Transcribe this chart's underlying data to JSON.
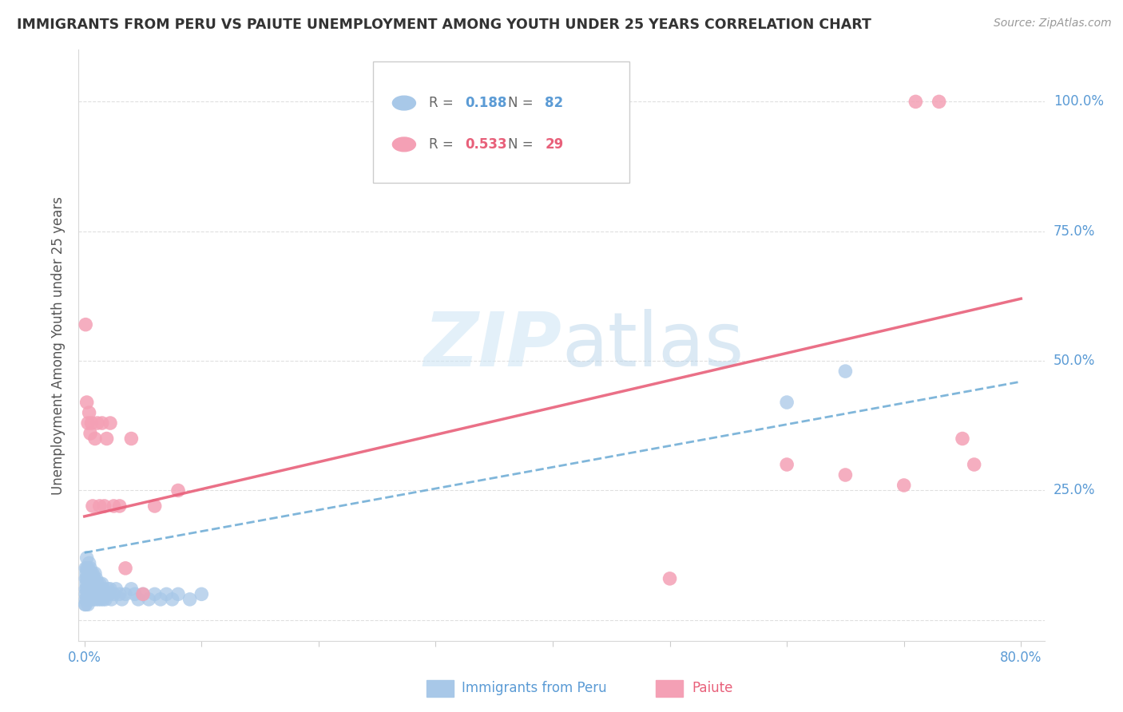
{
  "title": "IMMIGRANTS FROM PERU VS PAIUTE UNEMPLOYMENT AMONG YOUTH UNDER 25 YEARS CORRELATION CHART",
  "source": "Source: ZipAtlas.com",
  "ylabel": "Unemployment Among Youth under 25 years",
  "xlim": [
    -0.005,
    0.82
  ],
  "ylim": [
    -0.04,
    1.1
  ],
  "peru_R": 0.188,
  "peru_N": 82,
  "paiute_R": 0.533,
  "paiute_N": 29,
  "blue_color": "#a8c8e8",
  "pink_color": "#f4a0b5",
  "blue_line_color": "#6aaad4",
  "pink_line_color": "#e8607a",
  "watermark_color": "#daeef8",
  "grid_color": "#d8d8d8",
  "title_color": "#333333",
  "source_color": "#999999",
  "ylabel_color": "#555555",
  "tick_label_color": "#5b9bd5",
  "blue_legend_r_color": "#5b9bd5",
  "pink_legend_r_color": "#e8607a",
  "peru_x": [
    0.0005,
    0.001,
    0.001,
    0.001,
    0.001,
    0.001,
    0.001,
    0.0015,
    0.0015,
    0.002,
    0.002,
    0.002,
    0.002,
    0.002,
    0.0025,
    0.003,
    0.003,
    0.003,
    0.003,
    0.003,
    0.0035,
    0.004,
    0.004,
    0.004,
    0.004,
    0.005,
    0.005,
    0.005,
    0.005,
    0.006,
    0.006,
    0.006,
    0.007,
    0.007,
    0.007,
    0.008,
    0.008,
    0.008,
    0.009,
    0.009,
    0.009,
    0.01,
    0.01,
    0.01,
    0.011,
    0.011,
    0.012,
    0.012,
    0.013,
    0.013,
    0.014,
    0.014,
    0.015,
    0.015,
    0.016,
    0.016,
    0.017,
    0.018,
    0.019,
    0.02,
    0.021,
    0.022,
    0.023,
    0.025,
    0.027,
    0.03,
    0.032,
    0.035,
    0.04,
    0.043,
    0.046,
    0.05,
    0.055,
    0.06,
    0.065,
    0.07,
    0.075,
    0.08,
    0.09,
    0.1,
    0.6,
    0.65
  ],
  "peru_y": [
    0.03,
    0.04,
    0.06,
    0.08,
    0.1,
    0.03,
    0.05,
    0.07,
    0.09,
    0.04,
    0.06,
    0.08,
    0.1,
    0.12,
    0.05,
    0.04,
    0.06,
    0.08,
    0.1,
    0.03,
    0.07,
    0.05,
    0.07,
    0.09,
    0.11,
    0.04,
    0.06,
    0.08,
    0.1,
    0.05,
    0.07,
    0.09,
    0.05,
    0.07,
    0.09,
    0.04,
    0.06,
    0.08,
    0.05,
    0.07,
    0.09,
    0.04,
    0.06,
    0.08,
    0.05,
    0.07,
    0.04,
    0.06,
    0.05,
    0.07,
    0.04,
    0.06,
    0.05,
    0.07,
    0.04,
    0.06,
    0.05,
    0.04,
    0.05,
    0.06,
    0.05,
    0.06,
    0.04,
    0.05,
    0.06,
    0.05,
    0.04,
    0.05,
    0.06,
    0.05,
    0.04,
    0.05,
    0.04,
    0.05,
    0.04,
    0.05,
    0.04,
    0.05,
    0.04,
    0.05,
    0.42,
    0.48
  ],
  "paiute_x": [
    0.001,
    0.002,
    0.003,
    0.004,
    0.005,
    0.006,
    0.007,
    0.009,
    0.011,
    0.013,
    0.015,
    0.017,
    0.019,
    0.022,
    0.025,
    0.03,
    0.035,
    0.04,
    0.05,
    0.06,
    0.08,
    0.5,
    0.6,
    0.65,
    0.7,
    0.71,
    0.73,
    0.75,
    0.76
  ],
  "paiute_y": [
    0.57,
    0.42,
    0.38,
    0.4,
    0.36,
    0.38,
    0.22,
    0.35,
    0.38,
    0.22,
    0.38,
    0.22,
    0.35,
    0.38,
    0.22,
    0.22,
    0.1,
    0.35,
    0.05,
    0.22,
    0.25,
    0.08,
    0.3,
    0.28,
    0.26,
    1.0,
    1.0,
    0.35,
    0.3
  ],
  "blue_trend_x": [
    0.0,
    0.8
  ],
  "blue_trend_y": [
    0.13,
    0.46
  ],
  "pink_trend_x": [
    0.0,
    0.8
  ],
  "pink_trend_y": [
    0.2,
    0.62
  ]
}
